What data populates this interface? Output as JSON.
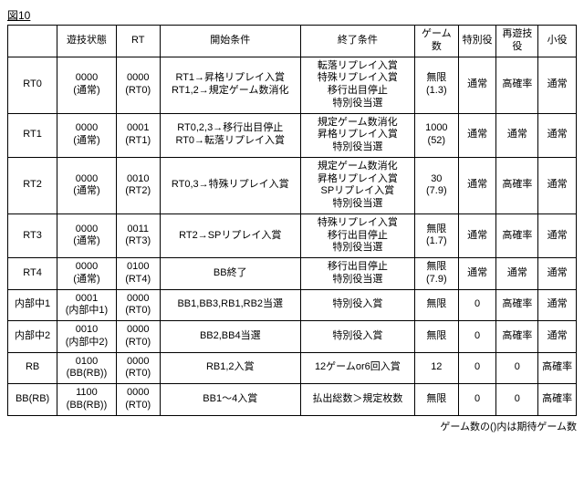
{
  "figure_label": "図10",
  "headers": [
    "",
    "遊技状態",
    "RT",
    "開始条件",
    "終了条件",
    "ゲーム数",
    "特別役",
    "再遊技役",
    "小役"
  ],
  "footnote": "ゲーム数の()内は期待ゲーム数",
  "rows": [
    {
      "name": "RT0",
      "state": [
        "0000",
        "(通常)"
      ],
      "rt": [
        "0000",
        "(RT0)"
      ],
      "start": [
        "RT1→昇格リプレイ入賞",
        "RT1,2→規定ゲーム数消化"
      ],
      "end": [
        "転落リプレイ入賞",
        "特殊リプレイ入賞",
        "移行出目停止",
        "特別役当選"
      ],
      "games": [
        "無限",
        "(1.3)"
      ],
      "sp": "通常",
      "replay": "高確率",
      "small": "通常"
    },
    {
      "name": "RT1",
      "state": [
        "0000",
        "(通常)"
      ],
      "rt": [
        "0001",
        "(RT1)"
      ],
      "start": [
        "RT0,2,3→移行出目停止",
        "RT0→転落リプレイ入賞"
      ],
      "end": [
        "規定ゲーム数消化",
        "昇格リプレイ入賞",
        "特別役当選"
      ],
      "games": [
        "1000",
        "(52)"
      ],
      "sp": "通常",
      "replay": "通常",
      "small": "通常"
    },
    {
      "name": "RT2",
      "state": [
        "0000",
        "(通常)"
      ],
      "rt": [
        "0010",
        "(RT2)"
      ],
      "start": [
        "RT0,3→特殊リプレイ入賞"
      ],
      "end": [
        "規定ゲーム数消化",
        "昇格リプレイ入賞",
        "SPリプレイ入賞",
        "特別役当選"
      ],
      "games": [
        "30",
        "(7.9)"
      ],
      "sp": "通常",
      "replay": "高確率",
      "small": "通常"
    },
    {
      "name": "RT3",
      "state": [
        "0000",
        "(通常)"
      ],
      "rt": [
        "0011",
        "(RT3)"
      ],
      "start": [
        "RT2→SPリプレイ入賞"
      ],
      "end": [
        "特殊リプレイ入賞",
        "移行出目停止",
        "特別役当選"
      ],
      "games": [
        "無限",
        "(1.7)"
      ],
      "sp": "通常",
      "replay": "高確率",
      "small": "通常"
    },
    {
      "name": "RT4",
      "state": [
        "0000",
        "(通常)"
      ],
      "rt": [
        "0100",
        "(RT4)"
      ],
      "start": [
        "BB終了"
      ],
      "end": [
        "移行出目停止",
        "特別役当選"
      ],
      "games": [
        "無限",
        "(7.9)"
      ],
      "sp": "通常",
      "replay": "通常",
      "small": "通常"
    },
    {
      "name": "内部中1",
      "state": [
        "0001",
        "(内部中1)"
      ],
      "rt": [
        "0000",
        "(RT0)"
      ],
      "start": [
        "BB1,BB3,RB1,RB2当選"
      ],
      "end": [
        "特別役入賞"
      ],
      "games": [
        "無限"
      ],
      "sp": "0",
      "replay": "高確率",
      "small": "通常"
    },
    {
      "name": "内部中2",
      "state": [
        "0010",
        "(内部中2)"
      ],
      "rt": [
        "0000",
        "(RT0)"
      ],
      "start": [
        "BB2,BB4当選"
      ],
      "end": [
        "特別役入賞"
      ],
      "games": [
        "無限"
      ],
      "sp": "0",
      "replay": "高確率",
      "small": "通常"
    },
    {
      "name": "RB",
      "state": [
        "0100",
        "(BB(RB))"
      ],
      "rt": [
        "0000",
        "(RT0)"
      ],
      "start": [
        "RB1,2入賞"
      ],
      "end": [
        "12ゲームor6回入賞"
      ],
      "games": [
        "12"
      ],
      "sp": "0",
      "replay": "0",
      "small": "高確率"
    },
    {
      "name": "BB(RB)",
      "state": [
        "1100",
        "(BB(RB))"
      ],
      "rt": [
        "0000",
        "(RT0)"
      ],
      "start": [
        "BB1～4入賞"
      ],
      "end": [
        "払出総数＞規定枚数"
      ],
      "games": [
        "無限"
      ],
      "sp": "0",
      "replay": "0",
      "small": "高確率"
    }
  ]
}
